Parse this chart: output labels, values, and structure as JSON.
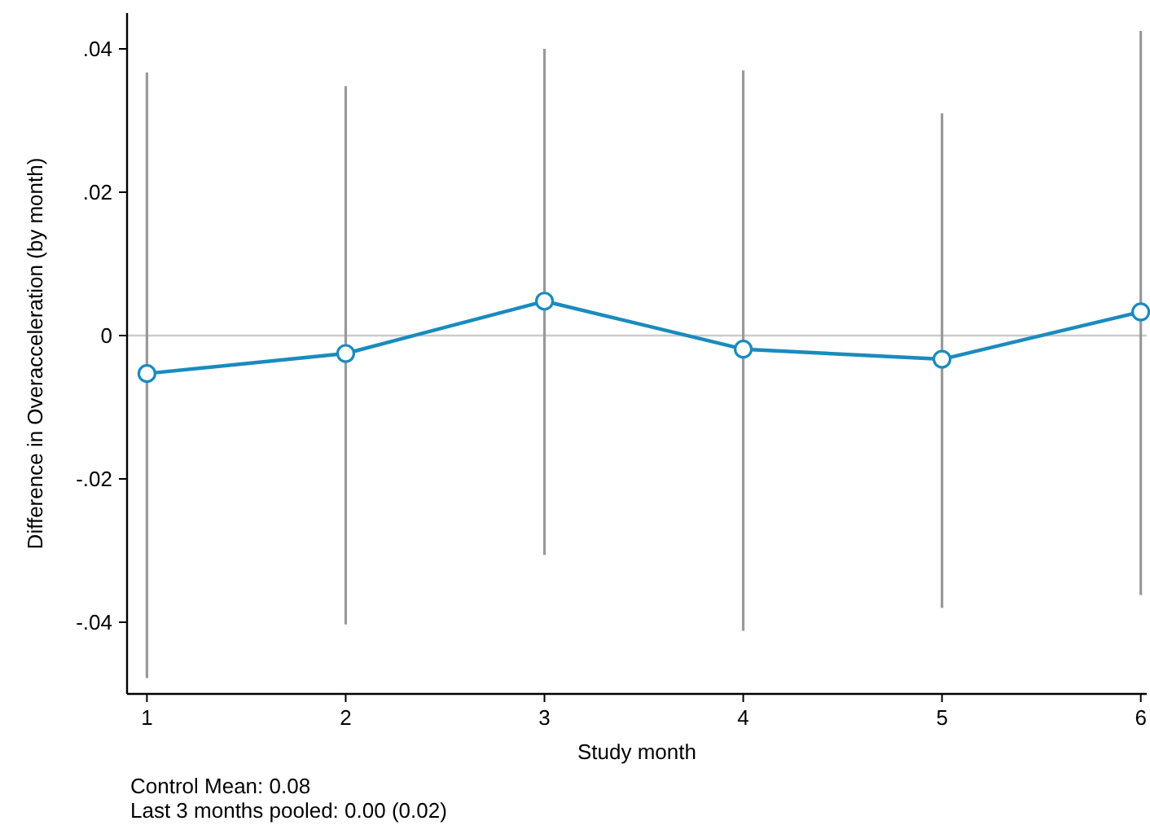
{
  "chart_data": {
    "type": "line",
    "xlabel": "Study month",
    "ylabel": "Difference in Overacceleration (by month)",
    "x": [
      1,
      2,
      3,
      4,
      5,
      6
    ],
    "series": [
      {
        "color": "#1a8bbd",
        "values": [
          -0.0053,
          -0.0025,
          0.0048,
          -0.0019,
          -0.0033,
          0.0033
        ],
        "errors": [
          [
            -0.0478,
            0.0367
          ],
          [
            -0.0403,
            0.0348
          ],
          [
            -0.0306,
            0.04
          ],
          [
            -0.0412,
            0.037
          ],
          [
            -0.038,
            0.031
          ],
          [
            -0.0362,
            0.0425
          ]
        ]
      }
    ],
    "marker": "circle",
    "grid": false,
    "xlim": [
      0.9,
      6.03
    ],
    "xticks": [
      1,
      2,
      3,
      4,
      5,
      6
    ],
    "ylim": [
      -0.05,
      0.045
    ],
    "yticks": [
      {
        "value": -0.04,
        "label": "-.04"
      },
      {
        "value": -0.02,
        "label": "-.02"
      },
      0,
      {
        "value": 0.02,
        "label": ".02"
      },
      {
        "value": 0.04,
        "label": ".04"
      }
    ],
    "ref_lines": [
      {
        "axis": "y",
        "value": 0,
        "color": "#cccccc"
      }
    ],
    "annotations": [
      "Control Mean: 0.08",
      "Last 3 months pooled: 0.00 (0.02)"
    ]
  }
}
